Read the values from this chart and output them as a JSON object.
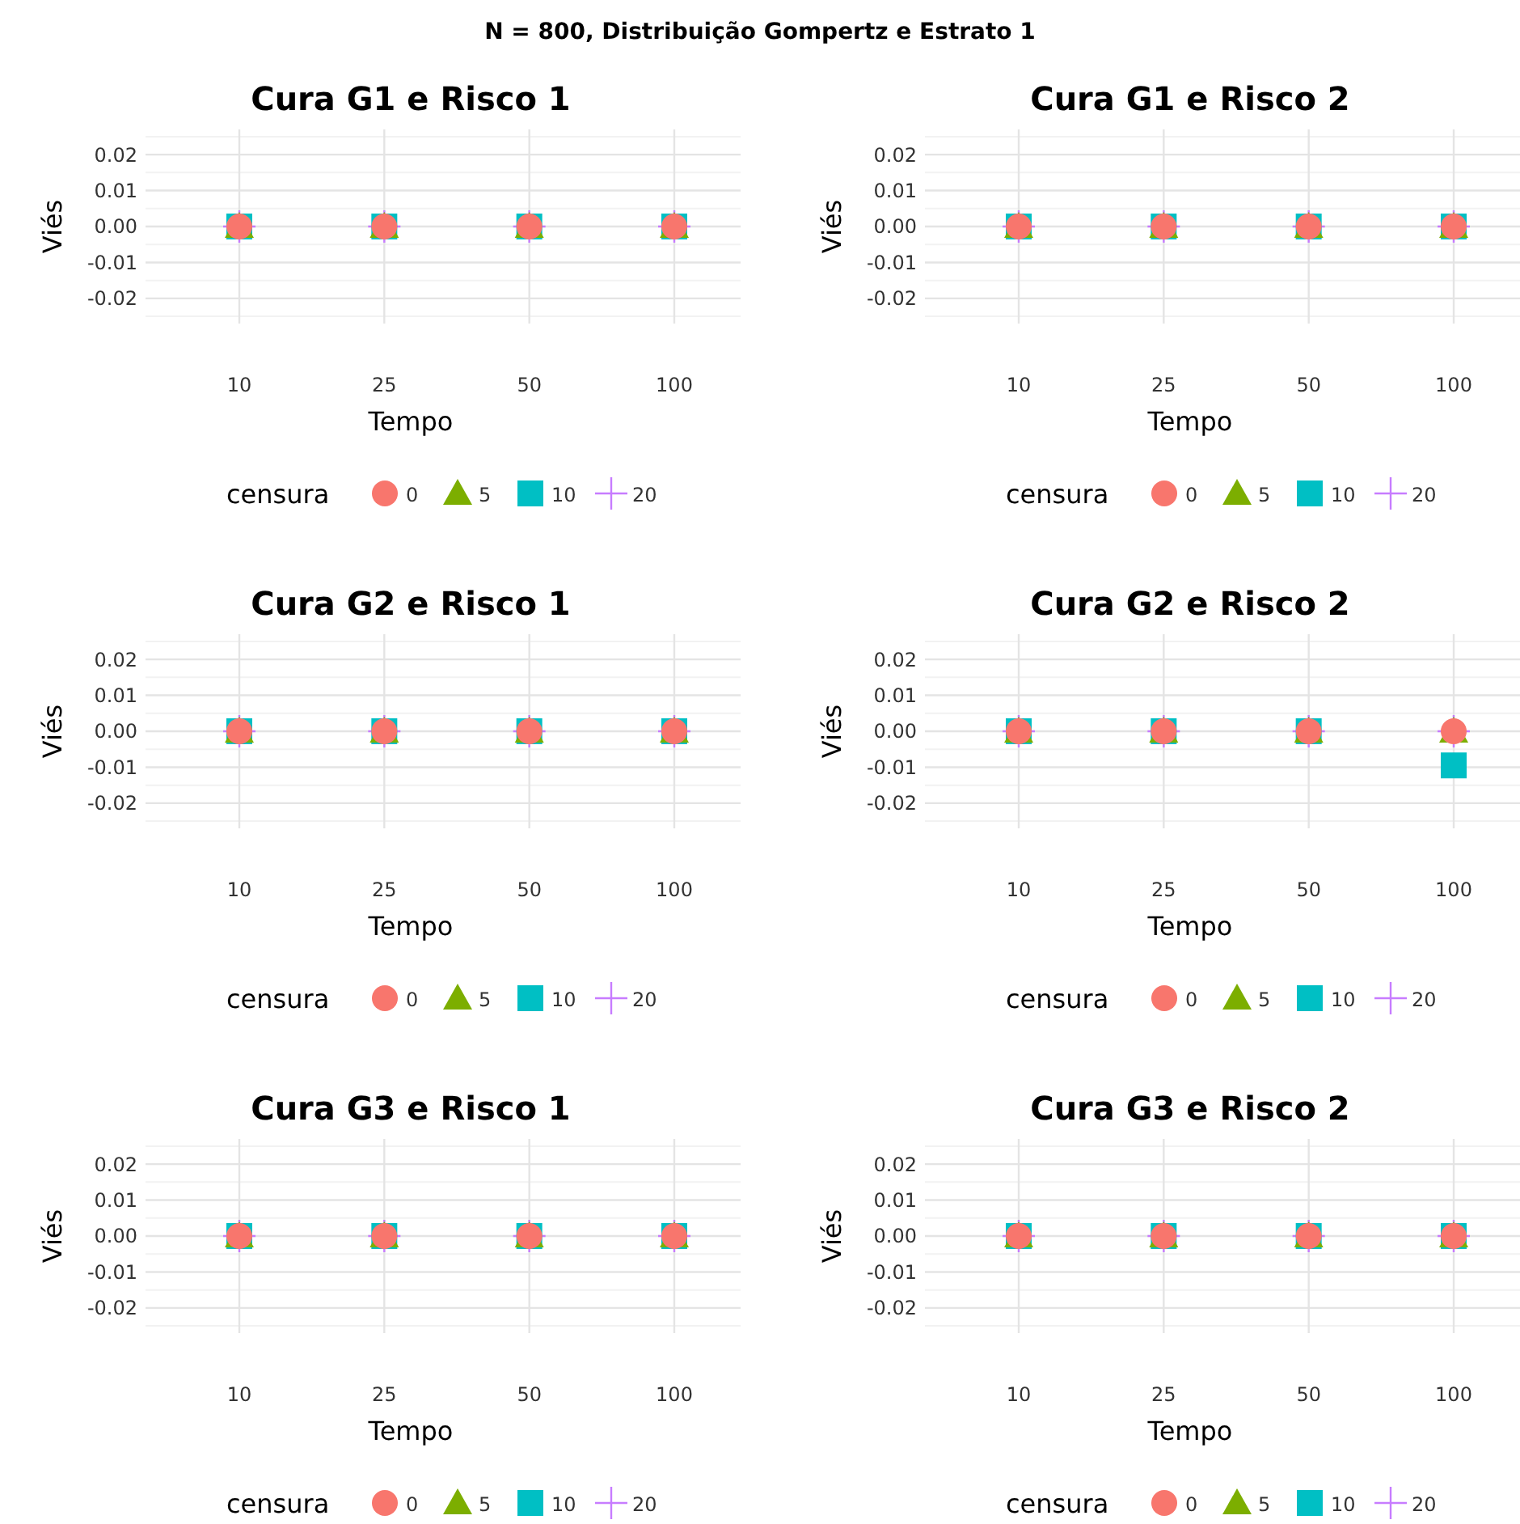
{
  "chart_data": [
    {
      "type": "scatter",
      "title": "Cura G1 e Risco 1",
      "xlabel": "Tempo",
      "ylabel": "Viés",
      "legend_title": "censura",
      "legend": "bottom",
      "grid": true,
      "annotations": [
        "N = 800, Distribuição Gompertz e Estrato 1"
      ],
      "categories": [
        "10",
        "25",
        "50",
        "100"
      ],
      "ylim": [
        -0.027,
        0.027
      ],
      "yticks": [
        {
          "value": -0.02,
          "label": "-0.02"
        },
        {
          "value": -0.01,
          "label": "-0.01"
        },
        {
          "value": 0,
          "label": "0.00"
        },
        {
          "value": 0.01,
          "label": "0.01"
        },
        {
          "value": 0.02,
          "label": "0.02"
        }
      ],
      "series": [
        {
          "name": "0",
          "color": "#f8766d",
          "marker": "circle",
          "values": [
            0,
            0,
            0,
            0
          ]
        },
        {
          "name": "5",
          "color": "#7cae00",
          "marker": "triangle",
          "values": [
            0,
            0,
            0,
            0
          ]
        },
        {
          "name": "10",
          "color": "#00bfc4",
          "marker": "square",
          "values": [
            0,
            0,
            0,
            0
          ]
        },
        {
          "name": "20",
          "color": "#c77cff",
          "marker": "cross",
          "values": [
            0,
            0,
            0,
            0
          ]
        }
      ]
    },
    {
      "type": "scatter",
      "title": "Cura G1 e Risco 2",
      "xlabel": "Tempo",
      "ylabel": "Viés",
      "legend_title": "censura",
      "legend": "bottom",
      "grid": true,
      "categories": [
        "10",
        "25",
        "50",
        "100"
      ],
      "ylim": [
        -0.027,
        0.027
      ],
      "yticks": [
        {
          "value": -0.02,
          "label": "-0.02"
        },
        {
          "value": -0.01,
          "label": "-0.01"
        },
        {
          "value": 0,
          "label": "0.00"
        },
        {
          "value": 0.01,
          "label": "0.01"
        },
        {
          "value": 0.02,
          "label": "0.02"
        }
      ],
      "series": [
        {
          "name": "0",
          "color": "#f8766d",
          "marker": "circle",
          "values": [
            0,
            0,
            0,
            0
          ]
        },
        {
          "name": "5",
          "color": "#7cae00",
          "marker": "triangle",
          "values": [
            0,
            0,
            0,
            0
          ]
        },
        {
          "name": "10",
          "color": "#00bfc4",
          "marker": "square",
          "values": [
            0,
            0,
            0,
            0
          ]
        },
        {
          "name": "20",
          "color": "#c77cff",
          "marker": "cross",
          "values": [
            0,
            0,
            0,
            0
          ]
        }
      ]
    },
    {
      "type": "scatter",
      "title": "Cura G2 e Risco 1",
      "xlabel": "Tempo",
      "ylabel": "Viés",
      "legend_title": "censura",
      "legend": "bottom",
      "grid": true,
      "categories": [
        "10",
        "25",
        "50",
        "100"
      ],
      "ylim": [
        -0.027,
        0.027
      ],
      "yticks": [
        {
          "value": -0.02,
          "label": "-0.02"
        },
        {
          "value": -0.01,
          "label": "-0.01"
        },
        {
          "value": 0,
          "label": "0.00"
        },
        {
          "value": 0.01,
          "label": "0.01"
        },
        {
          "value": 0.02,
          "label": "0.02"
        }
      ],
      "series": [
        {
          "name": "0",
          "color": "#f8766d",
          "marker": "circle",
          "values": [
            0,
            0,
            0,
            0
          ]
        },
        {
          "name": "5",
          "color": "#7cae00",
          "marker": "triangle",
          "values": [
            0,
            0,
            0,
            0
          ]
        },
        {
          "name": "10",
          "color": "#00bfc4",
          "marker": "square",
          "values": [
            0,
            0,
            0,
            0
          ]
        },
        {
          "name": "20",
          "color": "#c77cff",
          "marker": "cross",
          "values": [
            0,
            0,
            0,
            0
          ]
        }
      ]
    },
    {
      "type": "scatter",
      "title": "Cura G2 e Risco 2",
      "xlabel": "Tempo",
      "ylabel": "Viés",
      "legend_title": "censura",
      "legend": "bottom",
      "grid": true,
      "categories": [
        "10",
        "25",
        "50",
        "100"
      ],
      "ylim": [
        -0.027,
        0.027
      ],
      "yticks": [
        {
          "value": -0.02,
          "label": "-0.02"
        },
        {
          "value": -0.01,
          "label": "-0.01"
        },
        {
          "value": 0,
          "label": "0.00"
        },
        {
          "value": 0.01,
          "label": "0.01"
        },
        {
          "value": 0.02,
          "label": "0.02"
        }
      ],
      "series": [
        {
          "name": "0",
          "color": "#f8766d",
          "marker": "circle",
          "values": [
            0,
            0,
            0,
            0
          ]
        },
        {
          "name": "5",
          "color": "#7cae00",
          "marker": "triangle",
          "values": [
            0,
            0,
            0,
            0
          ]
        },
        {
          "name": "10",
          "color": "#00bfc4",
          "marker": "square",
          "values": [
            0,
            0,
            0,
            -0.0095
          ]
        },
        {
          "name": "20",
          "color": "#c77cff",
          "marker": "cross",
          "values": [
            0,
            0,
            0,
            0
          ]
        }
      ]
    },
    {
      "type": "scatter",
      "title": "Cura G3 e Risco 1",
      "xlabel": "Tempo",
      "ylabel": "Viés",
      "legend_title": "censura",
      "legend": "bottom",
      "grid": true,
      "categories": [
        "10",
        "25",
        "50",
        "100"
      ],
      "ylim": [
        -0.027,
        0.027
      ],
      "yticks": [
        {
          "value": -0.02,
          "label": "-0.02"
        },
        {
          "value": -0.01,
          "label": "-0.01"
        },
        {
          "value": 0,
          "label": "0.00"
        },
        {
          "value": 0.01,
          "label": "0.01"
        },
        {
          "value": 0.02,
          "label": "0.02"
        }
      ],
      "series": [
        {
          "name": "0",
          "color": "#f8766d",
          "marker": "circle",
          "values": [
            0,
            0,
            0,
            0
          ]
        },
        {
          "name": "5",
          "color": "#7cae00",
          "marker": "triangle",
          "values": [
            0,
            0,
            0,
            0
          ]
        },
        {
          "name": "10",
          "color": "#00bfc4",
          "marker": "square",
          "values": [
            0,
            0,
            0,
            0
          ]
        },
        {
          "name": "20",
          "color": "#c77cff",
          "marker": "cross",
          "values": [
            0,
            0,
            0,
            0
          ]
        }
      ]
    },
    {
      "type": "scatter",
      "title": "Cura G3 e Risco 2",
      "xlabel": "Tempo",
      "ylabel": "Viés",
      "legend_title": "censura",
      "legend": "bottom",
      "grid": true,
      "categories": [
        "10",
        "25",
        "50",
        "100"
      ],
      "ylim": [
        -0.027,
        0.027
      ],
      "yticks": [
        {
          "value": -0.02,
          "label": "-0.02"
        },
        {
          "value": -0.01,
          "label": "-0.01"
        },
        {
          "value": 0,
          "label": "0.00"
        },
        {
          "value": 0.01,
          "label": "0.01"
        },
        {
          "value": 0.02,
          "label": "0.02"
        }
      ],
      "series": [
        {
          "name": "0",
          "color": "#f8766d",
          "marker": "circle",
          "values": [
            0,
            0,
            0,
            0
          ]
        },
        {
          "name": "5",
          "color": "#7cae00",
          "marker": "triangle",
          "values": [
            0,
            0,
            0,
            0
          ]
        },
        {
          "name": "10",
          "color": "#00bfc4",
          "marker": "square",
          "values": [
            0,
            0,
            0,
            0
          ]
        },
        {
          "name": "20",
          "color": "#c77cff",
          "marker": "cross",
          "values": [
            0,
            0,
            0,
            0
          ]
        }
      ]
    }
  ]
}
